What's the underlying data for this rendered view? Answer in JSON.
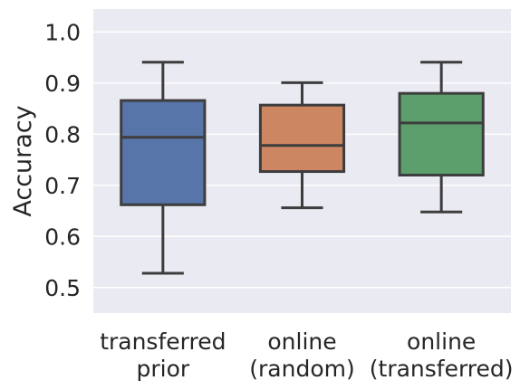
{
  "chart_data": {
    "type": "box",
    "ylabel": "Accuracy",
    "ylim": [
      0.45,
      1.045
    ],
    "yticks": [
      0.5,
      0.6,
      0.7,
      0.8,
      0.9,
      1.0
    ],
    "ytick_labels": [
      "0.5",
      "0.6",
      "0.7",
      "0.8",
      "0.9",
      "1.0"
    ],
    "grid": true,
    "categories": [
      [
        "transferred",
        "prior"
      ],
      [
        "online",
        "(random)"
      ],
      [
        "online",
        "(transferred)"
      ]
    ],
    "boxes": [
      {
        "whisker_low": 0.528,
        "q1": 0.662,
        "median": 0.794,
        "q3": 0.866,
        "whisker_high": 0.941,
        "color": "#5875a9"
      },
      {
        "whisker_low": 0.656,
        "q1": 0.727,
        "median": 0.778,
        "q3": 0.857,
        "whisker_high": 0.901,
        "color": "#cd8662"
      },
      {
        "whisker_low": 0.648,
        "q1": 0.72,
        "median": 0.822,
        "q3": 0.88,
        "whisker_high": 0.941,
        "color": "#5c9f6d"
      }
    ],
    "colors": {
      "plot_bg": "#eaeaf2",
      "grid": "#ffffff",
      "line": "#3d3d3d"
    }
  }
}
